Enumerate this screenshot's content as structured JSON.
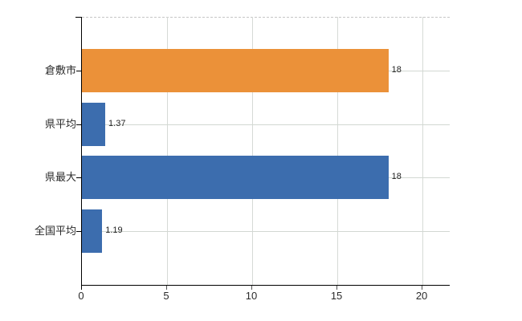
{
  "chart_data": {
    "type": "bar",
    "orientation": "horizontal",
    "title": "",
    "xlabel": "",
    "ylabel": "",
    "categories": [
      "倉敷市",
      "県平均",
      "県最大",
      "全国平均"
    ],
    "values": [
      18,
      1.37,
      18,
      1.19
    ],
    "value_labels": [
      "18",
      "1.37",
      "18",
      "1.19"
    ],
    "bar_colors": [
      "#EB9139",
      "#3C6DAE",
      "#3C6DAE",
      "#3C6DAE"
    ],
    "x_ticks": [
      0,
      5,
      10,
      15,
      20
    ],
    "x_tick_labels": [
      "0",
      "5",
      "10",
      "15",
      "20"
    ],
    "xlim": [
      0,
      21.6
    ],
    "grid": "on",
    "legend": "none",
    "colors": {
      "axis": "#000000",
      "gridline": "#d4d9d4",
      "top_border_dashed": "#c6c6c6",
      "value_text": "#222222",
      "label_text": "#2b2b2b",
      "background": "#ffffff"
    }
  }
}
